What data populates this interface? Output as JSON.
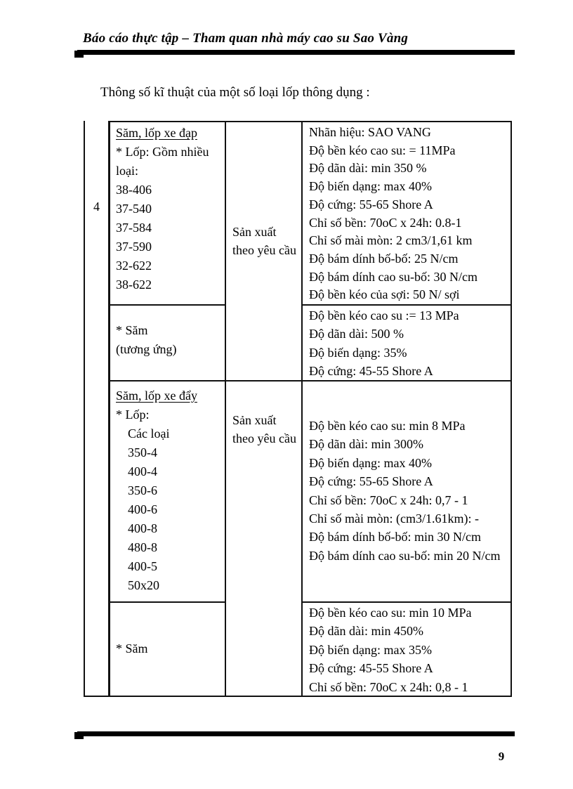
{
  "page": {
    "header_title": "Báo cáo thực tập – Tham quan nhà máy cao su Sao Vàng",
    "heading": "Thông số kĩ thuật của một số loại lốp thông dụng :",
    "page_number": "9"
  },
  "table": {
    "row_number": "4",
    "sections": [
      {
        "title": "Săm, lốp xe đạp",
        "tire_lines": [
          "* Lốp: Gồm nhiều",
          "loại:",
          "38-406",
          "37-540",
          "37-584",
          "37-590",
          "32-622",
          "38-622"
        ],
        "production": "Sản xuất theo yêu cầu",
        "tire_specs": [
          "Nhãn hiệu: SAO VANG",
          "Độ bền kéo cao su: = 11MPa",
          "Độ dãn dài: min 350 %",
          "Độ biến dạng: max 40%",
          "Độ cứng: 55-65 Shore A",
          "Chỉ số bền: 70oC x 24h: 0.8-1",
          "Chỉ số mài mòn: 2 cm3/1,61 km",
          "Độ bám dính bố-bố: 25 N/cm",
          "Độ bám dính cao su-bố: 30 N/cm",
          "Độ bền kéo của sợi: 50 N/ sợi"
        ],
        "tube_lines": [
          "* Săm",
          "(tương ứng)"
        ],
        "tube_specs": [
          "Độ bền kéo cao su := 13 MPa",
          "Độ dãn dài: 500 %",
          "Độ biến dạng: 35%",
          "Độ cứng: 45-55 Shore A"
        ]
      },
      {
        "title": "Săm, lốp xe đẩy",
        "tire_intro": "* Lốp:",
        "tire_sizes": [
          "Các loại",
          "350-4",
          "400-4",
          "350-6",
          "400-6",
          "400-8",
          "480-8",
          "400-5",
          "50x20"
        ],
        "production": "Sản xuất theo yêu cầu",
        "tire_specs": [
          "Độ bền kéo cao su: min 8 MPa",
          "Độ dãn dài: min 300%",
          "Độ biến dạng: max 40%",
          "Độ cứng: 55-65 Shore A",
          "Chỉ số bền: 70oC x 24h: 0,7 - 1",
          "Chỉ số mài mòn: (cm3/1.61km): -",
          "Độ bám dính bố-bố: min 30 N/cm",
          "Độ bám dính cao su-bố: min 20 N/cm"
        ],
        "tube_lines": [
          "* Săm"
        ],
        "tube_specs": [
          "Độ bền kéo cao su: min 10 MPa",
          "Độ dãn dài: min 450%",
          "Độ biến dạng: max 35%",
          "Độ cứng: 45-55 Shore A",
          "Chỉ số bền: 70oC x 24h: 0,8 - 1"
        ]
      }
    ]
  }
}
